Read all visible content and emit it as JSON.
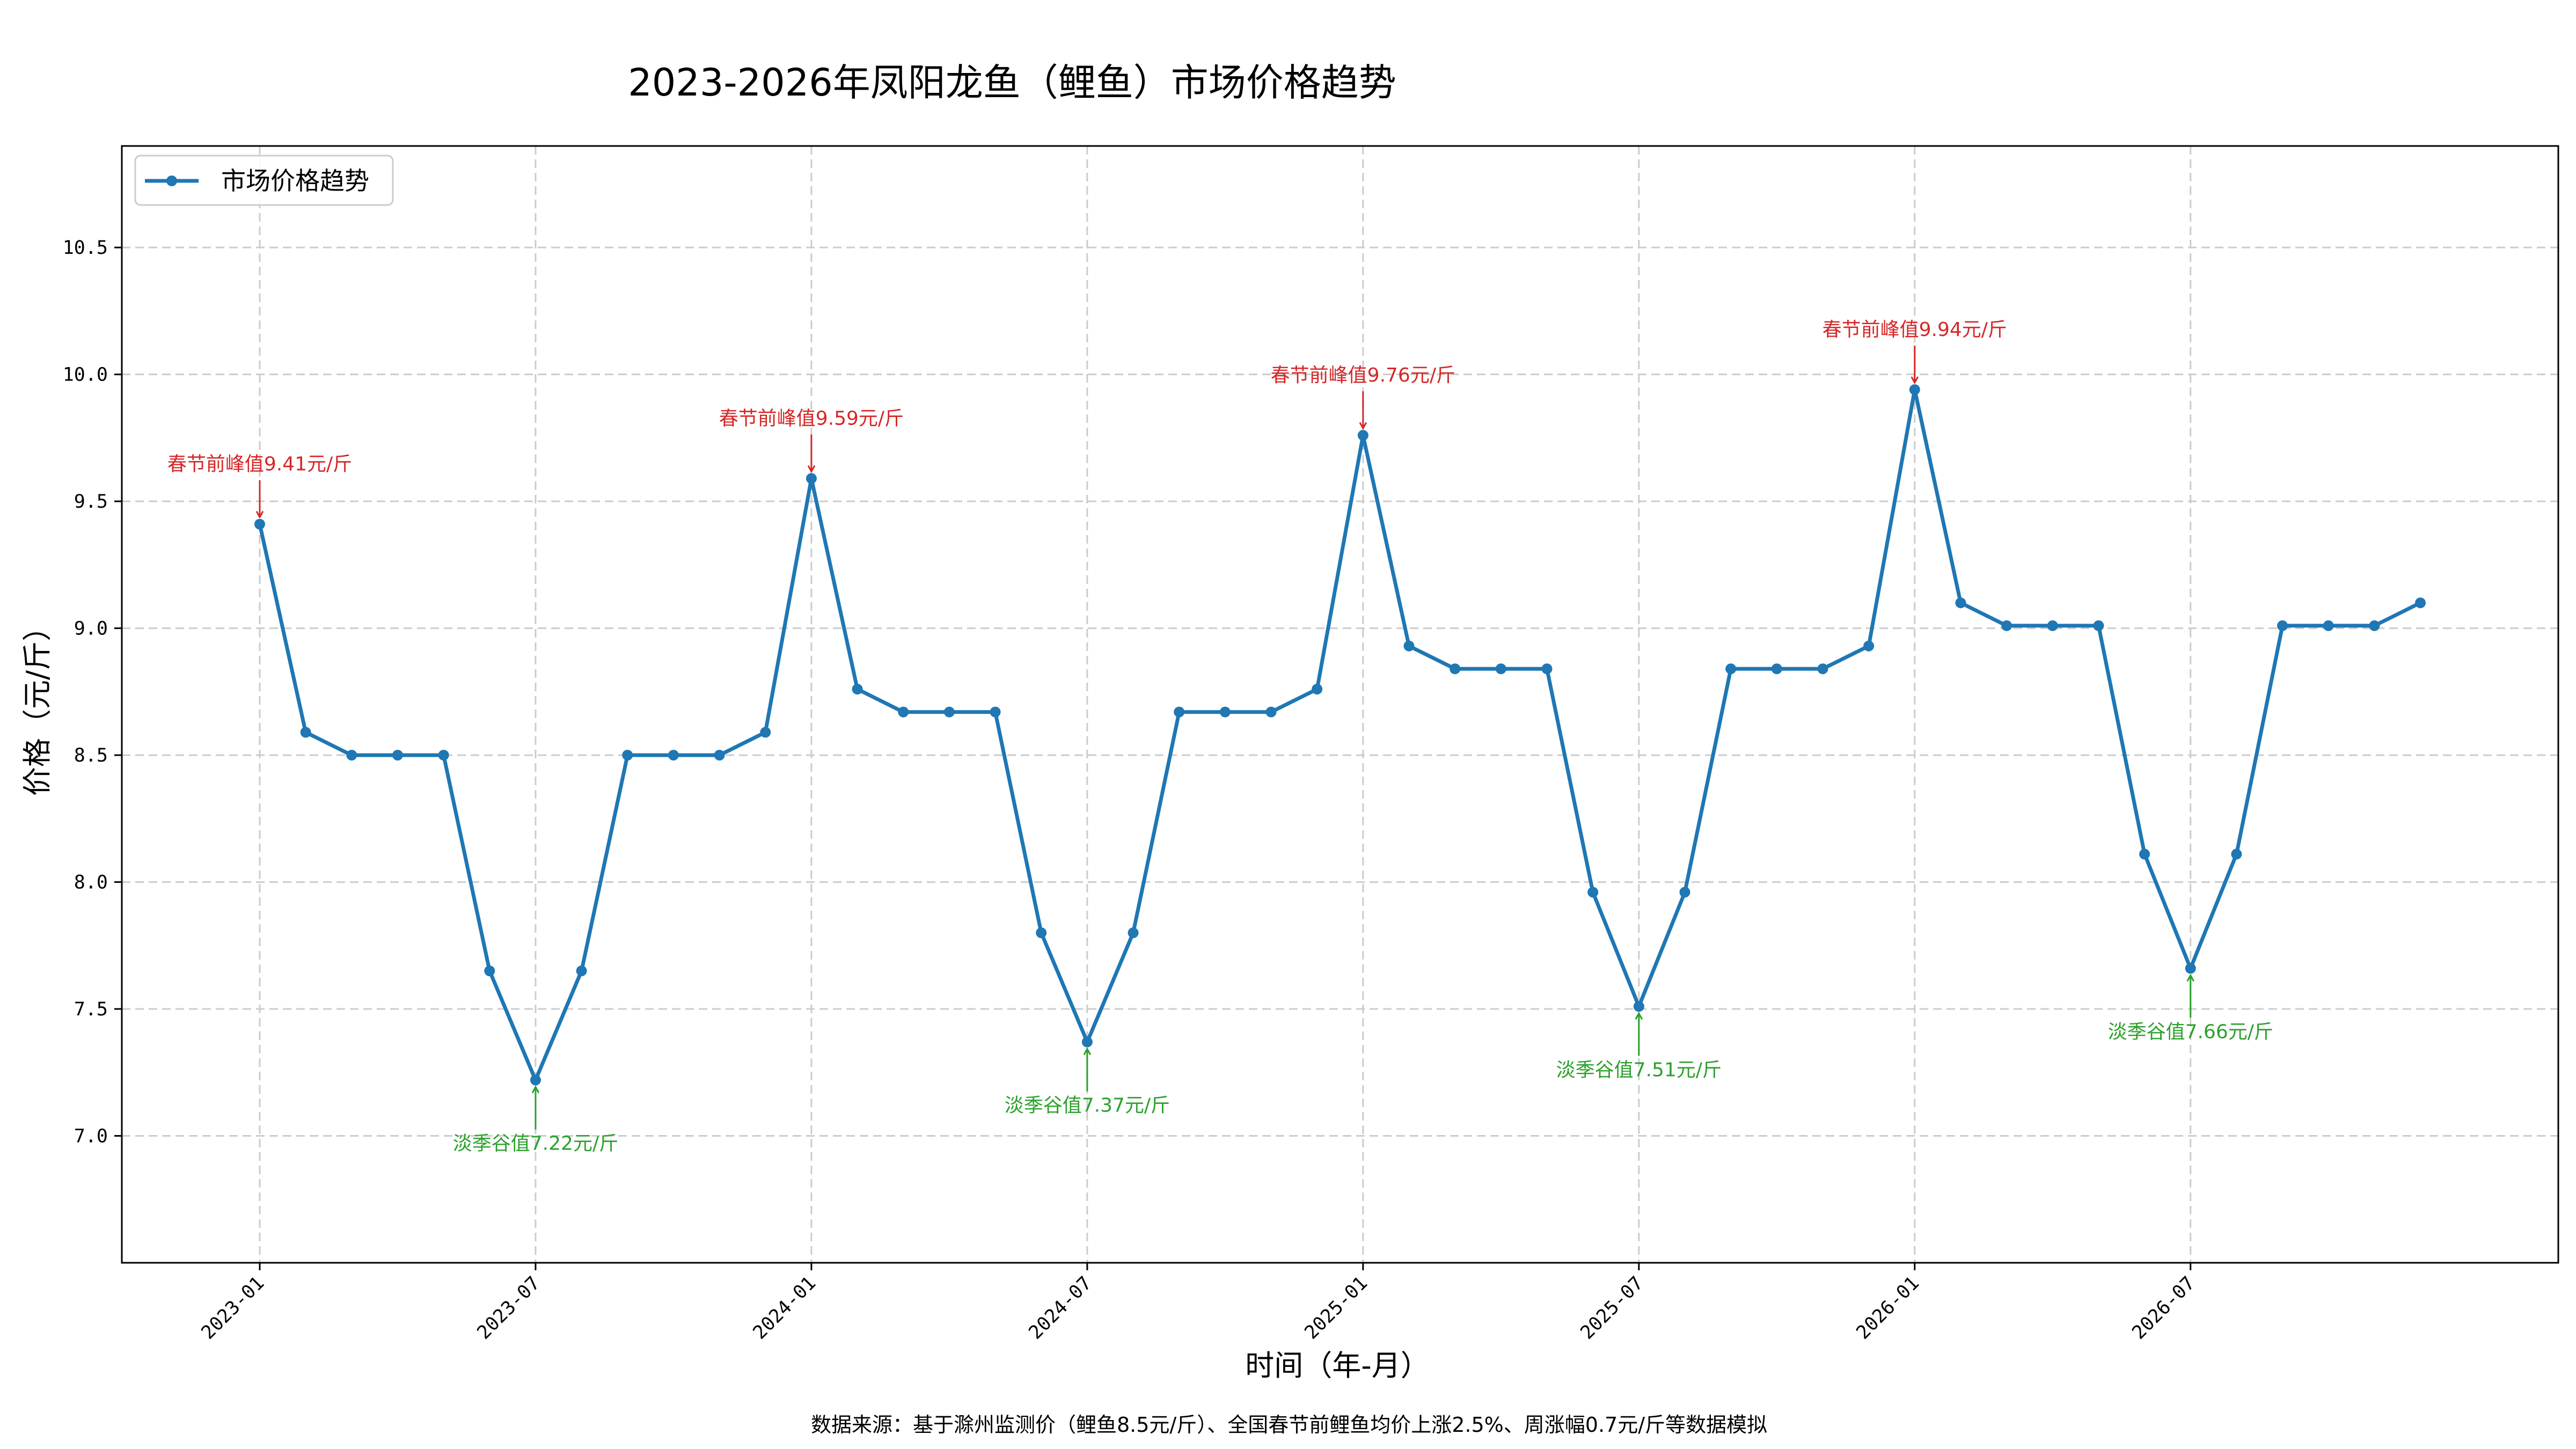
{
  "chart_data": {
    "type": "line",
    "title": "2023-2026年凤阳龙鱼（鲤鱼）市场价格趋势",
    "xlabel": "时间（年-月）",
    "ylabel": "价格（元/斤）",
    "ylim": [
      6.5,
      10.9
    ],
    "xlim": [
      "2022-10",
      "2027-03"
    ],
    "grid": true,
    "legend_position": "top-left",
    "y_ticks": [
      "7.0",
      "7.5",
      "8.0",
      "8.5",
      "9.0",
      "9.5",
      "10.0",
      "10.5"
    ],
    "x_ticks": [
      "2023-01",
      "2023-07",
      "2024-01",
      "2024-07",
      "2025-01",
      "2025-07",
      "2026-01",
      "2026-07"
    ],
    "series": [
      {
        "name": "市场价格趋势",
        "color": "#1f77b4",
        "x": [
          "2023-01",
          "2023-02",
          "2023-03",
          "2023-04",
          "2023-05",
          "2023-06",
          "2023-07",
          "2023-08",
          "2023-09",
          "2023-10",
          "2023-11",
          "2023-12",
          "2024-01",
          "2024-02",
          "2024-03",
          "2024-04",
          "2024-05",
          "2024-06",
          "2024-07",
          "2024-08",
          "2024-09",
          "2024-10",
          "2024-11",
          "2024-12",
          "2025-01",
          "2025-02",
          "2025-03",
          "2025-04",
          "2025-05",
          "2025-06",
          "2025-07",
          "2025-08",
          "2025-09",
          "2025-10",
          "2025-11",
          "2025-12",
          "2026-01",
          "2026-02",
          "2026-03",
          "2026-04",
          "2026-05",
          "2026-06",
          "2026-07",
          "2026-08",
          "2026-09",
          "2026-10",
          "2026-11",
          "2026-12"
        ],
        "values": [
          9.41,
          8.59,
          8.5,
          8.5,
          8.5,
          7.65,
          7.22,
          7.65,
          8.5,
          8.5,
          8.5,
          8.59,
          9.59,
          8.76,
          8.67,
          8.67,
          8.67,
          7.8,
          7.37,
          7.8,
          8.67,
          8.67,
          8.67,
          8.76,
          9.76,
          8.93,
          8.84,
          8.84,
          8.84,
          7.96,
          7.51,
          7.96,
          8.84,
          8.84,
          8.84,
          8.93,
          9.94,
          9.1,
          9.01,
          9.01,
          9.01,
          8.11,
          7.66,
          8.11,
          9.01,
          9.01,
          9.01,
          9.1
        ]
      }
    ],
    "annotations": [
      {
        "kind": "peak",
        "x": "2023-01",
        "y": 9.41,
        "text": "春节前峰值9.41元/斤",
        "color": "#d62728"
      },
      {
        "kind": "peak",
        "x": "2024-01",
        "y": 9.59,
        "text": "春节前峰值9.59元/斤",
        "color": "#d62728"
      },
      {
        "kind": "peak",
        "x": "2025-01",
        "y": 9.76,
        "text": "春节前峰值9.76元/斤",
        "color": "#d62728"
      },
      {
        "kind": "peak",
        "x": "2026-01",
        "y": 9.94,
        "text": "春节前峰值9.94元/斤",
        "color": "#d62728"
      },
      {
        "kind": "trough",
        "x": "2023-07",
        "y": 7.22,
        "text": "淡季谷值7.22元/斤",
        "color": "#2ca02c"
      },
      {
        "kind": "trough",
        "x": "2024-07",
        "y": 7.37,
        "text": "淡季谷值7.37元/斤",
        "color": "#2ca02c"
      },
      {
        "kind": "trough",
        "x": "2025-07",
        "y": 7.51,
        "text": "淡季谷值7.51元/斤",
        "color": "#2ca02c"
      },
      {
        "kind": "trough",
        "x": "2026-07",
        "y": 7.66,
        "text": "淡季谷值7.66元/斤",
        "color": "#2ca02c"
      }
    ]
  },
  "footer": {
    "source": "数据来源：基于滁州监测价（鲤鱼8.5元/斤）、全国春节前鲤鱼均价上涨2.5%、周涨幅0.7元/斤等数据模拟"
  }
}
